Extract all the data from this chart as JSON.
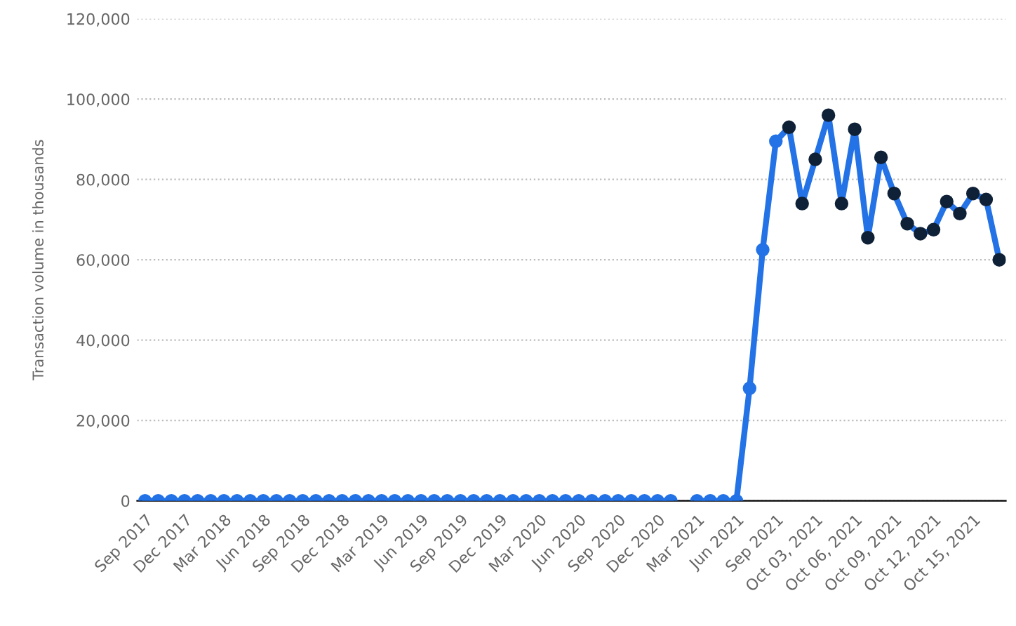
{
  "chart_data": {
    "type": "line",
    "ylabel": "Transaction volume in thousands",
    "categories": [
      "Sep 2017",
      null,
      null,
      "Dec 2017",
      null,
      null,
      "Mar 2018",
      null,
      null,
      "Jun 2018",
      null,
      null,
      "Sep 2018",
      null,
      null,
      "Dec 2018",
      null,
      null,
      "Mar 2019",
      null,
      null,
      "Jun 2019",
      null,
      null,
      "Sep 2019",
      null,
      null,
      "Dec 2019",
      null,
      null,
      "Mar 2020",
      null,
      null,
      "Jun 2020",
      null,
      null,
      "Sep 2020",
      null,
      null,
      "Dec 2020",
      null,
      null,
      "Mar 2021",
      null,
      null,
      "Jun 2021",
      null,
      null,
      "Sep 2021",
      null,
      null,
      "Oct 03, 2021",
      null,
      null,
      "Oct 06, 2021",
      null,
      null,
      "Oct 09, 2021",
      null,
      null,
      "Oct 12, 2021",
      null,
      null,
      "Oct 15, 2021",
      null,
      null
    ],
    "series": [
      {
        "color": "#2372e6",
        "colors": [
          "#2372e6",
          "#2372e6",
          "#2372e6",
          "#2372e6",
          "#2372e6",
          "#2372e6",
          "#2372e6",
          "#2372e6",
          "#2372e6",
          "#2372e6",
          "#2372e6",
          "#2372e6",
          "#2372e6",
          "#2372e6",
          "#2372e6",
          "#2372e6",
          "#2372e6",
          "#2372e6",
          "#2372e6",
          "#2372e6",
          "#2372e6",
          "#2372e6",
          "#2372e6",
          "#2372e6",
          "#2372e6",
          "#2372e6",
          "#2372e6",
          "#2372e6",
          "#2372e6",
          "#2372e6",
          "#2372e6",
          "#2372e6",
          "#2372e6",
          "#2372e6",
          "#2372e6",
          "#2372e6",
          "#2372e6",
          "#2372e6",
          "#2372e6",
          "#2372e6",
          "#2372e6",
          "#2372e6",
          "#2372e6",
          "#2372e6",
          "#2372e6",
          "#2372e6",
          "#2372e6",
          "#2372e6",
          "#2372e6",
          "#0f2137",
          "#0f2137",
          "#0f2137",
          "#0f2137",
          "#0f2137",
          "#0f2137",
          "#0f2137",
          "#0f2137",
          "#0f2137",
          "#0f2137",
          "#0f2137",
          "#0f2137",
          "#0f2137",
          "#0f2137",
          "#0f2137",
          "#0f2137",
          "#0f2137"
        ],
        "values": [
          0,
          0,
          0,
          0,
          0,
          0,
          0,
          0,
          0,
          0,
          0,
          0,
          0,
          0,
          0,
          0,
          0,
          0,
          0,
          0,
          0,
          0,
          0,
          0,
          0,
          0,
          0,
          0,
          0,
          0,
          0,
          0,
          0,
          0,
          0,
          0,
          0,
          0,
          0,
          0,
          0,
          null,
          0,
          0,
          0,
          0,
          28000,
          62500,
          89500,
          93000,
          74000,
          85000,
          96000,
          74000,
          92500,
          65500,
          85500,
          76500,
          69000,
          66500,
          67500,
          74500,
          71500,
          76500,
          75000,
          60000
        ]
      }
    ],
    "ylim": [
      0,
      120000
    ],
    "yticks": [
      {
        "value": 0,
        "label": "0"
      },
      {
        "value": 20000,
        "label": "20,000"
      },
      {
        "value": 40000,
        "label": "40,000"
      },
      {
        "value": 60000,
        "label": "60,000"
      },
      {
        "value": 80000,
        "label": "80,000"
      },
      {
        "value": 100000,
        "label": "100,000"
      },
      {
        "value": 120000,
        "label": "120,000"
      }
    ],
    "grid": "y",
    "marker": "circle",
    "line_style": "solid"
  }
}
